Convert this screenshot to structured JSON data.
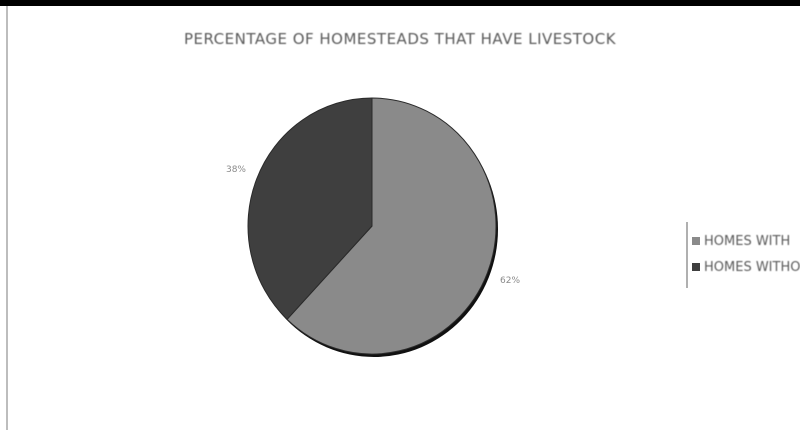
{
  "chart_data": {
    "type": "pie",
    "title": "PERCENTAGE OF HOMESTEADS THAT HAVE LIVESTOCK",
    "categories": [
      "HOMES WITH",
      "HOMES WITHOUT"
    ],
    "values": [
      62,
      38
    ],
    "data_labels": [
      "62%",
      "38%"
    ],
    "colors": [
      "#8a8a8a",
      "#3f3f3f"
    ],
    "legend": {
      "position": "right",
      "entries": [
        "HOMES WITH",
        "HOMES WITHOUT"
      ]
    }
  }
}
